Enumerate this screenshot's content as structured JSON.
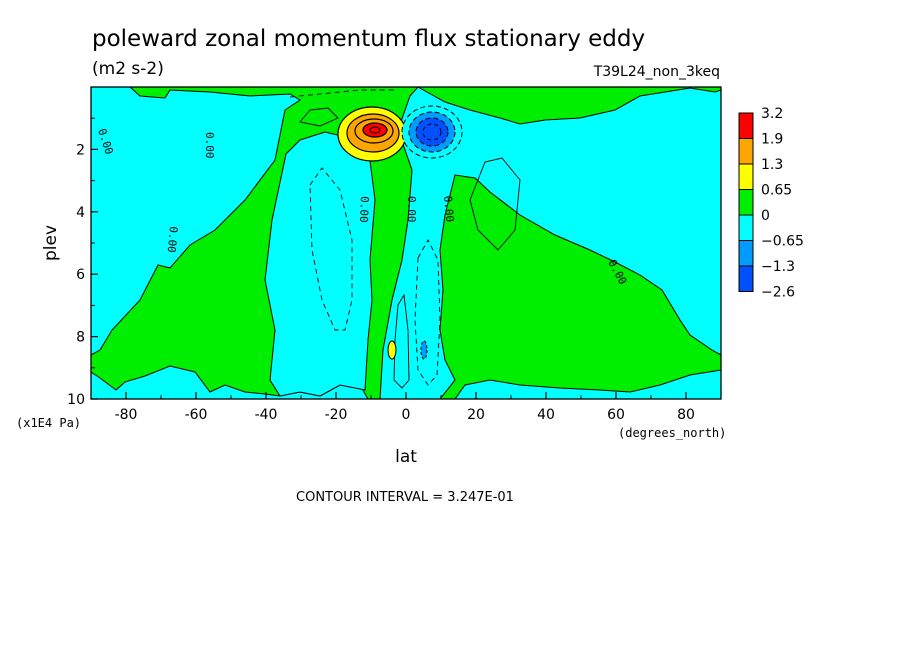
{
  "chart_data": {
    "type": "contour",
    "title": "poleward zonal momentum flux stationary eddy",
    "units": "(m2 s-2)",
    "dataset_label": "T39L24_non_3keq",
    "xlabel": "lat",
    "x_units": "(degrees_north)",
    "ylabel": "plev",
    "y_units": "(x1E4 Pa)",
    "xlim": [
      -90,
      90
    ],
    "ylim": [
      10,
      0
    ],
    "x_ticks": [
      -80,
      -60,
      -40,
      -20,
      0,
      20,
      40,
      60,
      80
    ],
    "x_tick_labels": [
      "-80",
      "-60",
      "-40",
      "-20",
      "0",
      "20",
      "40",
      "60",
      "80"
    ],
    "y_ticks": [
      2,
      4,
      6,
      8,
      10
    ],
    "y_tick_labels": [
      "2",
      "4",
      "6",
      "8",
      "10"
    ],
    "contour_interval_text": "CONTOUR INTERVAL = 3.247E-01",
    "zero_contour_label": "0.00",
    "colorbar": {
      "levels": [
        "3.2",
        "1.9",
        "1.3",
        "0.65",
        "0",
        "−0.65",
        "−1.3",
        "−2.6"
      ],
      "colors": [
        "#ff0000",
        "#ffa500",
        "#ffff00",
        "#00ee00",
        "#00ffff",
        "#009bff",
        "#0050ff"
      ]
    },
    "field_features": [
      {
        "name": "positive-maximum",
        "lat": -8,
        "plev": 1.5,
        "value": 3.2
      },
      {
        "name": "negative-minimum",
        "lat": 7,
        "plev": 1.6,
        "value": -2.6
      },
      {
        "name": "small-positive-spot",
        "lat": -4,
        "plev": 8.4,
        "value": 0.65
      },
      {
        "name": "small-negative-spot",
        "lat": 5,
        "plev": 8.4,
        "value": -0.65
      }
    ]
  }
}
